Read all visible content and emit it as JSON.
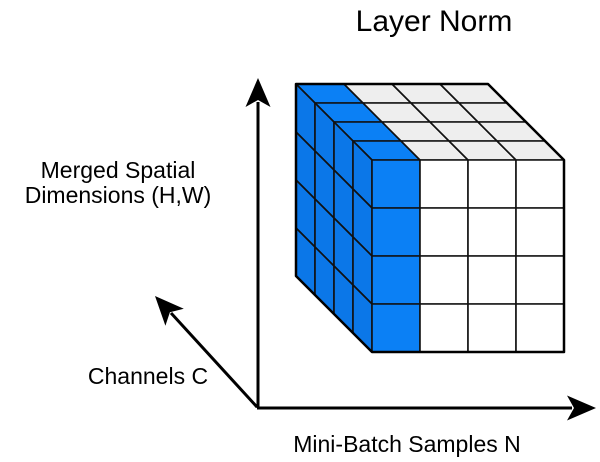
{
  "title": "Layer Norm",
  "axis_labels": {
    "vertical_line1": "Merged Spatial",
    "vertical_line2": "Dimensions (H,W)",
    "depth": "Channels C",
    "horizontal": "Mini-Batch Samples N"
  },
  "cube": {
    "n_samples": 4,
    "spatial_rows": 4,
    "channel_depth": 4,
    "highlighted_axis": "N",
    "highlighted_index": 0,
    "colors": {
      "highlight_front": "#0b80f5",
      "highlight_side": "#0b77e8",
      "highlight_top": "#0b80f5",
      "plain_front": "#ffffff",
      "plain_top": "#eeeeee",
      "stroke": "#111111",
      "axis": "#000000"
    }
  }
}
